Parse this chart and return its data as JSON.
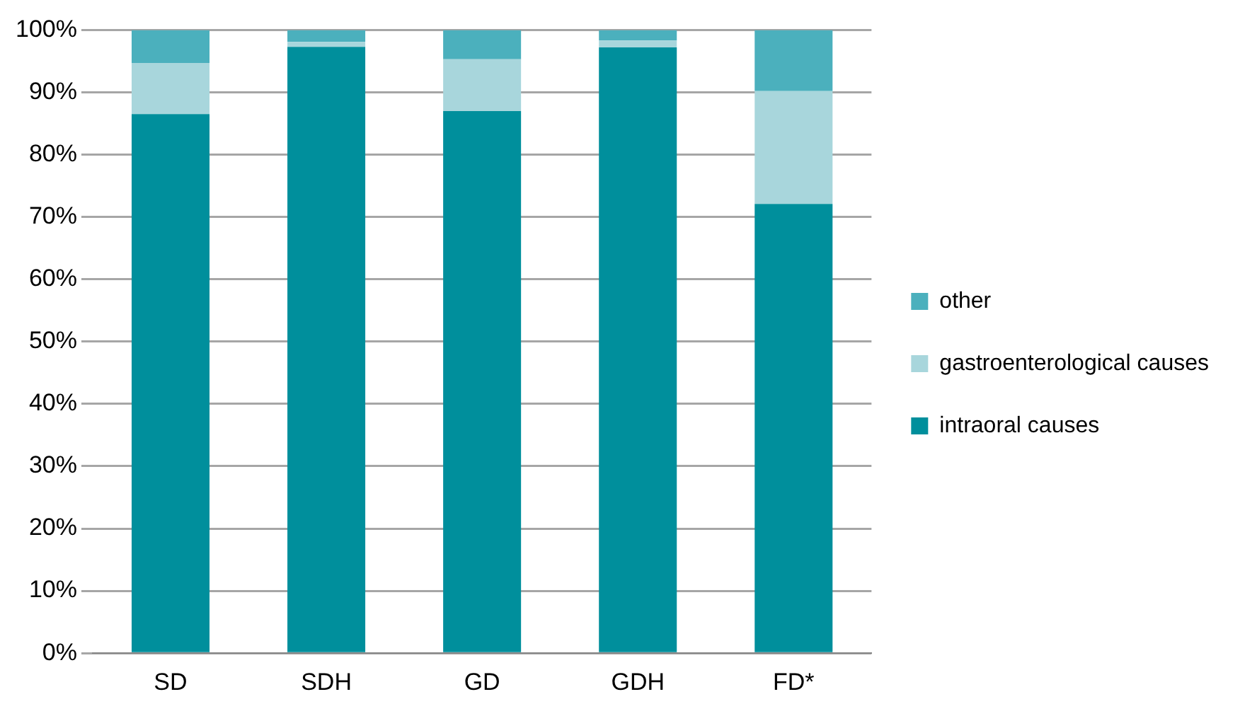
{
  "chart_data": {
    "type": "bar",
    "stacked": true,
    "categories": [
      "SD",
      "SDH",
      "GD",
      "GDH",
      "FD*"
    ],
    "series": [
      {
        "name": "intraoral causes",
        "color": "#008f9c",
        "values": [
          86.5,
          97.3,
          87.0,
          97.2,
          72.1
        ]
      },
      {
        "name": "gastroenterological causes",
        "color": "#a8d6dc",
        "values": [
          8.2,
          0.8,
          8.3,
          1.1,
          18.1
        ]
      },
      {
        "name": "other",
        "color": "#4bb0bd",
        "values": [
          5.3,
          1.9,
          4.7,
          1.7,
          9.8
        ]
      }
    ],
    "ylim": [
      0,
      100
    ],
    "yticks": [
      {
        "value": 0,
        "label": "0%"
      },
      {
        "value": 10,
        "label": "10%"
      },
      {
        "value": 20,
        "label": "20%"
      },
      {
        "value": 30,
        "label": "30%"
      },
      {
        "value": 40,
        "label": "40%"
      },
      {
        "value": 50,
        "label": "50%"
      },
      {
        "value": 60,
        "label": "60%"
      },
      {
        "value": 70,
        "label": "70%"
      },
      {
        "value": 80,
        "label": "80%"
      },
      {
        "value": 90,
        "label": "90%"
      },
      {
        "value": 100,
        "label": "100%"
      }
    ],
    "grid": "y",
    "legend": "right"
  }
}
